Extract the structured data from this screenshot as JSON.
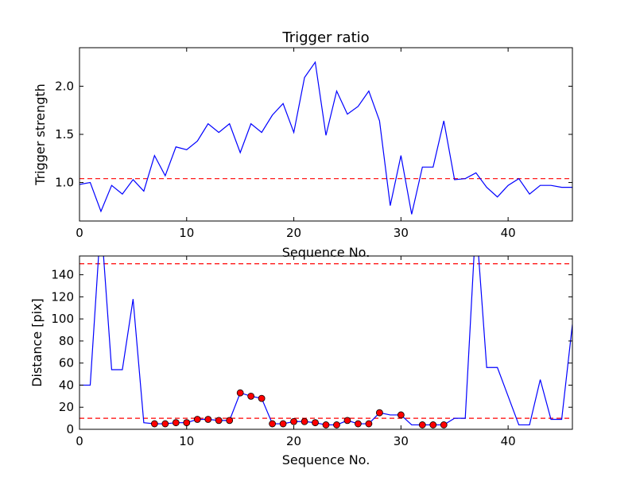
{
  "chart_data": [
    {
      "type": "line",
      "title": "Trigger ratio",
      "xlabel": "Sequence No.",
      "ylabel": "Trigger strength",
      "xlim": [
        0,
        46
      ],
      "ylim": [
        0.6,
        2.4
      ],
      "xticks": [
        0,
        10,
        20,
        30,
        40
      ],
      "yticks": [
        1.0,
        1.5,
        2.0
      ],
      "ytick_labels": [
        "1.0",
        "1.5",
        "2.0"
      ],
      "grid": false,
      "line_color": "#0000ff",
      "threshold_color": "#ff0000",
      "thresholds": [
        1.04
      ],
      "series": [
        {
          "x": [
            0,
            1,
            2,
            3,
            4,
            5,
            6,
            7,
            8,
            9,
            10,
            11,
            12,
            13,
            14,
            15,
            16,
            17,
            18,
            19,
            20,
            21,
            22,
            23,
            24,
            25,
            26,
            27,
            28,
            29,
            30,
            31,
            32,
            33,
            34,
            35,
            36,
            37,
            38,
            39,
            40,
            41,
            42,
            43,
            44,
            45,
            46
          ],
          "values": [
            0.98,
            1.0,
            0.7,
            0.97,
            0.88,
            1.03,
            0.91,
            1.28,
            1.07,
            1.37,
            1.34,
            1.43,
            1.61,
            1.52,
            1.61,
            1.31,
            1.61,
            1.52,
            1.7,
            1.82,
            1.52,
            2.09,
            2.25,
            1.49,
            1.95,
            1.71,
            1.79,
            1.95,
            1.64,
            0.76,
            1.28,
            0.67,
            1.16,
            1.16,
            1.64,
            1.03,
            1.04,
            1.1,
            0.95,
            0.85,
            0.97,
            1.04,
            0.88,
            0.97,
            0.97,
            0.95,
            0.95
          ]
        }
      ]
    },
    {
      "type": "line",
      "title": "",
      "xlabel": "Sequence No.",
      "ylabel": "Distance [pix]",
      "xlim": [
        0,
        46
      ],
      "ylim": [
        0,
        157
      ],
      "xticks": [
        0,
        10,
        20,
        30,
        40
      ],
      "yticks": [
        0,
        20,
        40,
        60,
        80,
        100,
        120,
        140
      ],
      "grid": false,
      "line_color": "#0000ff",
      "marker_color": "#ff0000",
      "threshold_color": "#ff0000",
      "thresholds": [
        10,
        150
      ],
      "series": [
        {
          "x": [
            0,
            1,
            2,
            3,
            4,
            5,
            6,
            7,
            8,
            9,
            10,
            11,
            12,
            13,
            14,
            15,
            16,
            17,
            18,
            19,
            20,
            21,
            22,
            23,
            24,
            25,
            26,
            27,
            28,
            29,
            30,
            31,
            32,
            33,
            34,
            35,
            36,
            37,
            38,
            39,
            40,
            41,
            42,
            43,
            44,
            45,
            46
          ],
          "values": [
            40,
            40,
            190,
            54,
            54,
            118,
            6,
            5,
            5,
            6,
            6,
            9,
            9,
            8,
            8,
            33,
            30,
            28,
            5,
            5,
            7,
            7,
            6,
            4,
            4,
            8,
            5,
            5,
            15,
            13,
            13,
            4,
            4,
            4,
            4,
            10,
            10,
            190,
            56,
            56,
            30,
            4,
            4,
            45,
            9,
            9,
            95
          ]
        }
      ],
      "markers": {
        "x": [
          7,
          8,
          9,
          10,
          11,
          12,
          13,
          14,
          15,
          16,
          17,
          18,
          19,
          20,
          21,
          22,
          23,
          24,
          25,
          26,
          27,
          28,
          30,
          32,
          33,
          34
        ],
        "values": [
          5,
          5,
          6,
          6,
          9,
          9,
          8,
          8,
          33,
          30,
          28,
          5,
          5,
          7,
          7,
          6,
          4,
          4,
          8,
          5,
          5,
          15,
          13,
          4,
          4,
          4
        ]
      }
    }
  ]
}
